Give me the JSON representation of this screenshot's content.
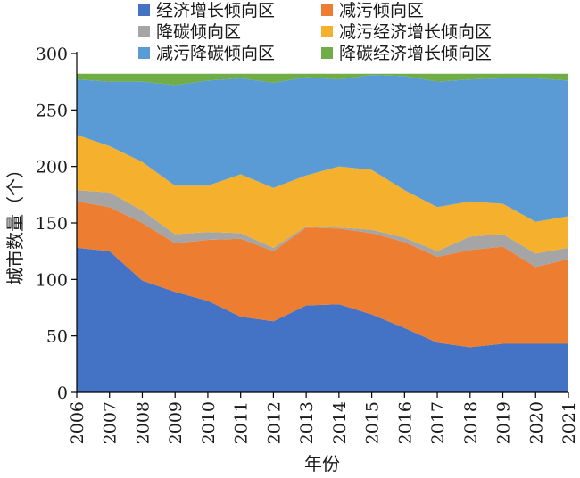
{
  "chart_data": {
    "type": "area",
    "stacked": true,
    "xlabel": "年份",
    "ylabel": "城市数量（个）",
    "ylim": [
      0,
      300
    ],
    "yticks": [
      0,
      50,
      100,
      150,
      200,
      250,
      300
    ],
    "grid": false,
    "legend_position": "top",
    "x": [
      "2006",
      "2007",
      "2008",
      "2009",
      "2010",
      "2011",
      "2012",
      "2013",
      "2014",
      "2015",
      "2016",
      "2017",
      "2018",
      "2019",
      "2020",
      "2021"
    ],
    "series": [
      {
        "name": "经济增长倾向区",
        "color": "#4472C4",
        "values": [
          128,
          125,
          99,
          89,
          81,
          67,
          63,
          77,
          78,
          69,
          57,
          44,
          40,
          43,
          43,
          43
        ]
      },
      {
        "name": "减污倾向区",
        "color": "#ED7D31",
        "values": [
          41,
          39,
          51,
          43,
          54,
          69,
          62,
          69,
          67,
          72,
          76,
          76,
          86,
          86,
          68,
          75
        ]
      },
      {
        "name": "降碳倾向区",
        "color": "#A5A5A5",
        "values": [
          10,
          13,
          11,
          8,
          7,
          5,
          3,
          1,
          1,
          3,
          4,
          5,
          12,
          11,
          12,
          10
        ]
      },
      {
        "name": "减污经济增长倾向区",
        "color": "#F5B02D",
        "values": [
          49,
          41,
          43,
          43,
          41,
          52,
          53,
          45,
          54,
          53,
          42,
          39,
          31,
          27,
          28,
          28
        ]
      },
      {
        "name": "减污降碳倾向区",
        "color": "#5B9BD5",
        "values": [
          49,
          57,
          71,
          89,
          93,
          85,
          93,
          87,
          77,
          84,
          101,
          111,
          108,
          111,
          127,
          120
        ]
      },
      {
        "name": "降碳经济增长倾向区",
        "color": "#70AD47",
        "values": [
          5,
          7,
          7,
          10,
          6,
          4,
          8,
          3,
          5,
          1,
          2,
          7,
          5,
          4,
          4,
          6
        ]
      }
    ]
  }
}
